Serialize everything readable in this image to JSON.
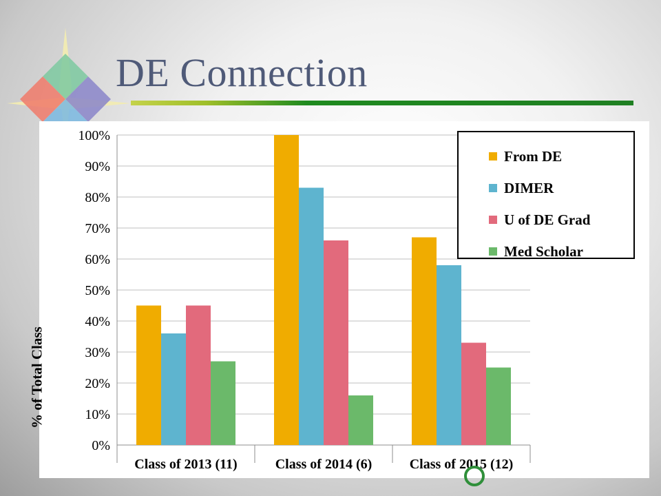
{
  "slide": {
    "title": "DE Connection",
    "colors": {
      "title": "#4f5a78",
      "rule": "#1f8a1f"
    }
  },
  "logo": {
    "icon": "compass-star-diamond-icon"
  },
  "chart_data": {
    "type": "bar",
    "title": "",
    "xlabel": "",
    "ylabel": "% of Total Class",
    "ylim": [
      0,
      100
    ],
    "yticks": [
      "0%",
      "10%",
      "20%",
      "30%",
      "40%",
      "50%",
      "60%",
      "70%",
      "80%",
      "90%",
      "100%"
    ],
    "grid": true,
    "legend_position": "top-right",
    "categories": [
      "Class of 2013 (11)",
      "Class of 2014 (6)",
      "Class of 2015 (12)"
    ],
    "series": [
      {
        "name": "From DE",
        "color": "#f0ac00",
        "values": [
          45,
          100,
          67
        ]
      },
      {
        "name": "DIMER",
        "color": "#5eb4cf",
        "values": [
          36,
          83,
          58
        ]
      },
      {
        "name": "U of DE Grad",
        "color": "#e26a7c",
        "values": [
          45,
          66,
          33
        ]
      },
      {
        "name": "Med Scholar",
        "color": "#6bb96a",
        "values": [
          27,
          16,
          25
        ]
      }
    ]
  }
}
